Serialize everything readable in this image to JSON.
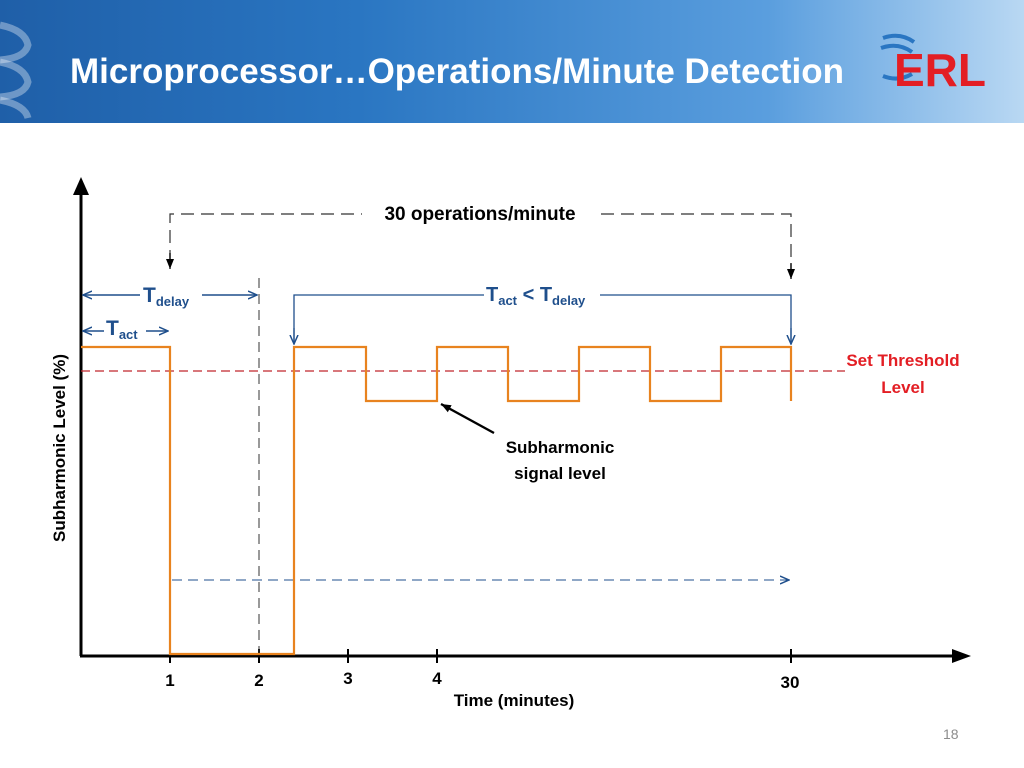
{
  "slide": {
    "title": "Microprocessor…Operations/Minute Detection",
    "logo_text": "ERL",
    "page_number": "18"
  },
  "diagram": {
    "ylabel": "Subharmonic Level (%)",
    "xlabel": "Time (minutes)",
    "x_ticks": [
      "1",
      "2",
      "3",
      "4",
      "30"
    ],
    "annotations": {
      "ops_per_minute": "30 operations/minute",
      "t_delay_main": "T",
      "t_delay_sub": "delay",
      "t_act_main": "T",
      "t_act_sub": "act",
      "tact_lt_tdelay": {
        "t1": "T",
        "s1": "act",
        "op": " < ",
        "t2": "T",
        "s2": "delay"
      },
      "threshold_line1": "Set Threshold",
      "threshold_line2": "Level",
      "signal_line1": "Subharmonic",
      "signal_line2": "signal level"
    },
    "colors": {
      "signal": "#e8831f",
      "threshold": "#c0262c",
      "annotation": "#1f4f8c",
      "axis": "#000000",
      "header_blue": "#2a76c2",
      "logo_red": "#e31e24"
    }
  }
}
